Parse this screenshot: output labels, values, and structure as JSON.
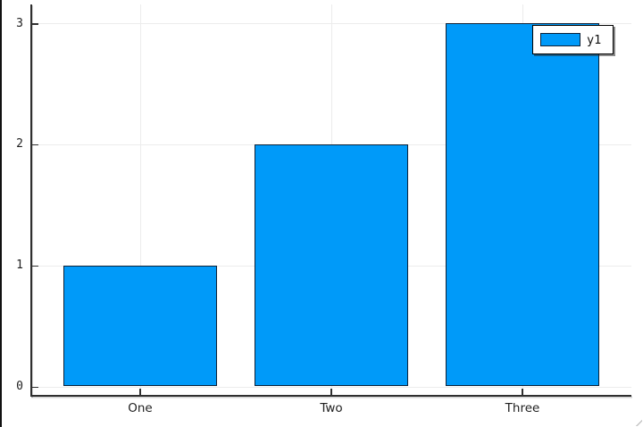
{
  "chart_data": {
    "type": "bar",
    "categories": [
      "One",
      "Two",
      "Three"
    ],
    "series": [
      {
        "name": "y1",
        "values": [
          1,
          2,
          3
        ]
      }
    ],
    "title": "",
    "xlabel": "",
    "ylabel": "",
    "yticks": [
      0,
      1,
      2,
      3
    ],
    "ylim": [
      0,
      3
    ],
    "grid": true,
    "legend_position": "top-right",
    "colors": {
      "bar_fill": "#009af9",
      "bar_stroke": "#0d2137",
      "axis": "#2f2f2f",
      "gridline": "#ececec",
      "legend_border": "#000000"
    }
  }
}
